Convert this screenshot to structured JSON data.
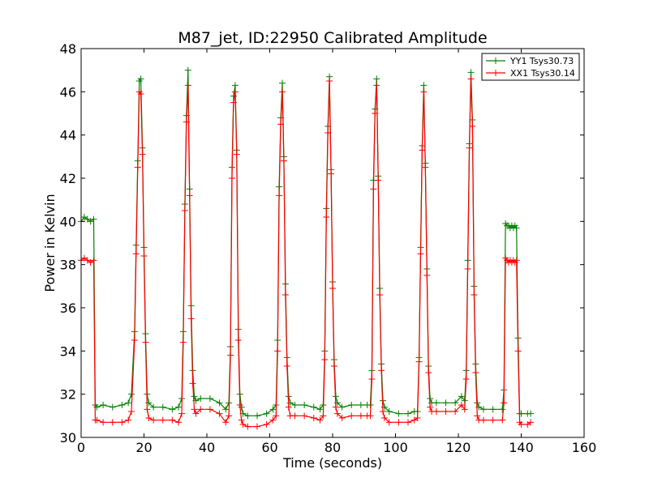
{
  "chart_data": {
    "type": "line",
    "title": "M87_jet, ID:22950 Calibrated Amplitude",
    "xlabel": "Time (seconds)",
    "ylabel": "Power in Kelvin",
    "xlim": [
      0,
      160
    ],
    "ylim": [
      30,
      48
    ],
    "xticks": [
      0,
      20,
      40,
      60,
      80,
      100,
      120,
      140,
      160
    ],
    "yticks": [
      30,
      32,
      34,
      36,
      38,
      40,
      42,
      44,
      46,
      48
    ],
    "grid": false,
    "legend_placement": "top-right",
    "series": [
      {
        "name": "YY1 Tsys30.73",
        "color": "#008000",
        "x": [
          0,
          1,
          2,
          3,
          4,
          4.5,
          5,
          7,
          10,
          13,
          15,
          16,
          17,
          17.5,
          18,
          18.5,
          19,
          19.5,
          20,
          20.5,
          21,
          21.5,
          23,
          26,
          29,
          31,
          32,
          32.5,
          33,
          33.5,
          34,
          34.5,
          35,
          35.5,
          36,
          36.5,
          38,
          41,
          44,
          46,
          47,
          47.5,
          48,
          48.5,
          49,
          49.5,
          50,
          50.5,
          51,
          51.5,
          53,
          56,
          59,
          61,
          62,
          62.5,
          63,
          63.5,
          64,
          64.5,
          65,
          65.5,
          66,
          66.5,
          68,
          71,
          74,
          76,
          77,
          77.5,
          78,
          78.5,
          79,
          79.5,
          80,
          80.5,
          81,
          81.5,
          83,
          86,
          89,
          91,
          92,
          92.5,
          93,
          93.5,
          94,
          94.5,
          95,
          95.5,
          96,
          96.5,
          98,
          101,
          104,
          106,
          107,
          107.5,
          108,
          108.5,
          109,
          109.5,
          110,
          110.5,
          111,
          111.5,
          113,
          116,
          119,
          121,
          122,
          122.5,
          123,
          123.5,
          124,
          124.5,
          125,
          125.5,
          126,
          126.5,
          128,
          131,
          134,
          134.5,
          135,
          135.5,
          136,
          136.5,
          137,
          137.5,
          138,
          138.5,
          139,
          139.5,
          140,
          142,
          143
        ],
        "y": [
          40.0,
          40.2,
          40.1,
          40.0,
          40.1,
          31.5,
          31.4,
          31.5,
          31.4,
          31.5,
          31.6,
          32.0,
          34.9,
          38.9,
          42.8,
          46.5,
          46.6,
          43.4,
          38.8,
          34.8,
          32.0,
          31.6,
          31.4,
          31.4,
          31.3,
          31.4,
          31.8,
          34.9,
          40.8,
          44.9,
          47.0,
          41.5,
          36.1,
          33.1,
          31.9,
          31.7,
          31.8,
          31.8,
          31.6,
          31.3,
          31.6,
          34.2,
          42.5,
          45.8,
          46.3,
          43.3,
          35.0,
          32.0,
          31.4,
          31.1,
          31.0,
          31.0,
          31.1,
          31.3,
          31.5,
          34.5,
          41.6,
          44.8,
          46.4,
          43.0,
          37.1,
          33.7,
          31.9,
          31.6,
          31.5,
          31.5,
          31.4,
          31.3,
          31.5,
          34.0,
          40.6,
          44.4,
          46.7,
          42.4,
          37.2,
          33.6,
          31.9,
          31.6,
          31.4,
          31.5,
          31.5,
          31.5,
          31.5,
          33.1,
          41.9,
          45.2,
          46.6,
          42.1,
          36.9,
          33.4,
          31.7,
          31.4,
          31.2,
          31.1,
          31.1,
          31.2,
          31.2,
          33.7,
          38.8,
          43.5,
          46.3,
          42.7,
          37.8,
          33.3,
          31.8,
          31.6,
          31.6,
          31.6,
          31.6,
          31.9,
          31.7,
          33.1,
          38.2,
          43.6,
          46.9,
          44.7,
          37.0,
          33.4,
          31.6,
          31.4,
          31.3,
          31.3,
          31.3,
          32.2,
          39.9,
          39.8,
          39.8,
          39.7,
          39.8,
          39.7,
          39.8,
          39.7,
          34.6,
          31.1,
          31.1,
          31.1,
          31.1
        ]
      },
      {
        "name": "XX1 Tsys30.14",
        "color": "#ff0000",
        "x": [
          0,
          1,
          2,
          3,
          4,
          4.5,
          5,
          7,
          10,
          13,
          15,
          16,
          17,
          17.5,
          18,
          18.5,
          19,
          19.5,
          20,
          20.5,
          21,
          21.5,
          23,
          26,
          29,
          31,
          32,
          32.5,
          33,
          33.5,
          34,
          34.5,
          35,
          35.5,
          36,
          36.5,
          38,
          41,
          44,
          46,
          47,
          47.5,
          48,
          48.5,
          49,
          49.5,
          50,
          50.5,
          51,
          51.5,
          53,
          56,
          59,
          61,
          62,
          62.5,
          63,
          63.5,
          64,
          64.5,
          65,
          65.5,
          66,
          66.5,
          68,
          71,
          74,
          76,
          77,
          77.5,
          78,
          78.5,
          79,
          79.5,
          80,
          80.5,
          81,
          81.5,
          83,
          86,
          89,
          91,
          92,
          92.5,
          93,
          93.5,
          94,
          94.5,
          95,
          95.5,
          96,
          96.5,
          98,
          101,
          104,
          106,
          107,
          107.5,
          108,
          108.5,
          109,
          109.5,
          110,
          110.5,
          111,
          111.5,
          113,
          116,
          119,
          121,
          122,
          122.5,
          123,
          123.5,
          124,
          124.5,
          125,
          125.5,
          126,
          126.5,
          128,
          131,
          134,
          134.5,
          135,
          135.5,
          136,
          136.5,
          137,
          137.5,
          138,
          138.5,
          139,
          139.5,
          140,
          142,
          143
        ],
        "y": [
          38.2,
          38.3,
          38.2,
          38.1,
          38.2,
          30.8,
          30.8,
          30.7,
          30.7,
          30.7,
          30.8,
          31.2,
          34.5,
          38.5,
          42.5,
          46.0,
          45.9,
          43.1,
          38.4,
          34.4,
          31.3,
          30.9,
          30.8,
          30.8,
          30.8,
          30.7,
          31.1,
          34.4,
          40.5,
          44.6,
          46.3,
          41.2,
          35.5,
          32.5,
          31.3,
          31.1,
          31.3,
          31.3,
          31.1,
          30.7,
          31.0,
          33.8,
          42.0,
          45.5,
          46.0,
          43.1,
          34.5,
          31.5,
          30.8,
          30.6,
          30.5,
          30.5,
          30.6,
          30.8,
          31.0,
          34.0,
          41.2,
          44.5,
          46.0,
          42.8,
          36.6,
          33.3,
          31.4,
          31.0,
          31.0,
          31.0,
          30.9,
          30.8,
          31.0,
          33.6,
          40.2,
          44.1,
          46.5,
          42.2,
          36.9,
          33.3,
          31.4,
          31.1,
          30.9,
          31.0,
          31.0,
          31.0,
          31.0,
          32.7,
          41.5,
          45.0,
          46.3,
          41.9,
          36.6,
          33.1,
          31.2,
          30.9,
          30.7,
          30.7,
          30.7,
          30.8,
          30.9,
          33.5,
          38.5,
          43.3,
          46.0,
          42.5,
          37.5,
          33.0,
          31.4,
          31.2,
          31.2,
          31.2,
          31.2,
          31.5,
          31.3,
          32.7,
          37.8,
          43.4,
          46.6,
          44.4,
          36.6,
          33.0,
          31.0,
          30.8,
          30.8,
          30.8,
          30.8,
          31.6,
          38.3,
          38.2,
          38.1,
          38.2,
          38.1,
          38.2,
          38.1,
          38.2,
          34.0,
          30.7,
          30.6,
          30.6,
          30.7
        ]
      }
    ]
  }
}
